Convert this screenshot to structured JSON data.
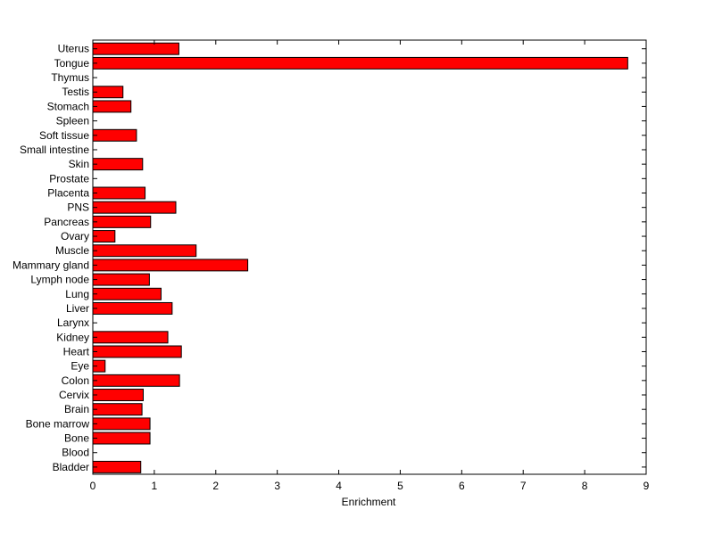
{
  "chart_data": {
    "type": "bar",
    "orientation": "horizontal",
    "title": "",
    "xlabel": "Enrichment",
    "ylabel": "",
    "xlim": [
      0,
      9
    ],
    "x_ticks": [
      "0",
      "1",
      "2",
      "3",
      "4",
      "5",
      "6",
      "7",
      "8",
      "9"
    ],
    "grid": false,
    "legend": "none",
    "bar_color": "#ff0000",
    "edge_color": "#000000",
    "categories": [
      "Uterus",
      "Tongue",
      "Thymus",
      "Testis",
      "Stomach",
      "Spleen",
      "Soft tissue",
      "Small intestine",
      "Skin",
      "Prostate",
      "Placenta",
      "PNS",
      "Pancreas",
      "Ovary",
      "Muscle",
      "Mammary gland",
      "Lymph node",
      "Lung",
      "Liver",
      "Larynx",
      "Kidney",
      "Heart",
      "Eye",
      "Colon",
      "Cervix",
      "Brain",
      "Bone marrow",
      "Bone",
      "Blood",
      "Bladder"
    ],
    "values": [
      1.4,
      8.7,
      0,
      0.49,
      0.62,
      0,
      0.71,
      0,
      0.81,
      0,
      0.85,
      1.35,
      0.94,
      0.36,
      1.68,
      2.52,
      0.92,
      1.11,
      1.29,
      0,
      1.22,
      1.44,
      0.2,
      1.41,
      0.82,
      0.8,
      0.93,
      0.93,
      0,
      0.78
    ]
  }
}
